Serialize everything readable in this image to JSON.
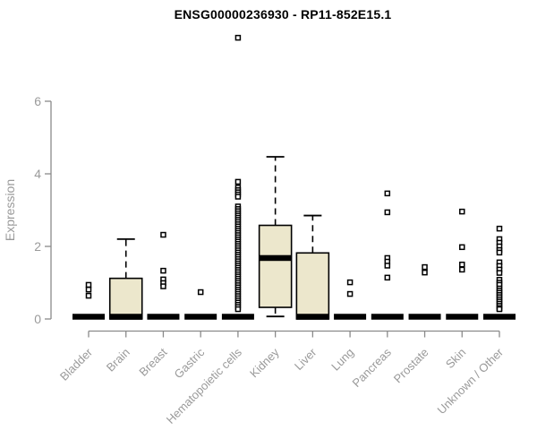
{
  "colors": {
    "box_fill": "#ece7cc",
    "box_stroke": "#000000",
    "median": "#000000",
    "axis_line": "#8a8a8a",
    "tick_label": "#9a9a9a",
    "title": "#000000",
    "outlier_fill": "#ffffff",
    "outlier_stroke": "#000000"
  },
  "chart_data": {
    "type": "boxplot",
    "title": "ENSG00000236930 - RP11-852E15.1",
    "ylabel": "Expression",
    "xlabel": "",
    "ylim": [
      0,
      6
    ],
    "yticks": [
      0,
      2,
      4,
      6
    ],
    "grid": false,
    "legend": false,
    "categories": [
      "Bladder",
      "Brain",
      "Breast",
      "Gastric",
      "Hematopoietic cells",
      "Kidney",
      "Liver",
      "Lung",
      "Pancreas",
      "Prostate",
      "Skin",
      "Unknown / Other"
    ],
    "boxes": [
      {
        "category": "Bladder",
        "q1": 0,
        "median": 0,
        "q3": 0,
        "whisker_low": 0,
        "whisker_high": 0,
        "outliers": [
          0.94,
          0.81,
          0.64
        ]
      },
      {
        "category": "Brain",
        "q1": 0,
        "median": 0,
        "q3": 1.12,
        "whisker_low": 0,
        "whisker_high": 2.2,
        "outliers": []
      },
      {
        "category": "Breast",
        "q1": 0,
        "median": 0,
        "q3": 0,
        "whisker_low": 0,
        "whisker_high": 0,
        "outliers": [
          2.32,
          1.33,
          1.09,
          0.99,
          0.9
        ]
      },
      {
        "category": "Gastric",
        "q1": 0,
        "median": 0,
        "q3": 0,
        "whisker_low": 0,
        "whisker_high": 0,
        "outliers": [
          0.74
        ]
      },
      {
        "category": "Hematopoietic cells",
        "q1": 0,
        "median": 0,
        "q3": 0,
        "whisker_low": 0,
        "whisker_high": 0,
        "outliers": [
          7.75,
          3.78,
          3.62,
          3.55,
          3.49,
          3.43,
          3.37,
          3.1,
          3.03,
          2.97,
          2.91,
          2.85,
          2.79,
          2.73,
          2.67,
          2.61,
          2.55,
          2.49,
          2.43,
          2.37,
          2.31,
          2.25,
          2.19,
          2.13,
          2.07,
          2.01,
          1.95,
          1.89,
          1.83,
          1.77,
          1.71,
          1.65,
          1.59,
          1.53,
          1.47,
          1.41,
          1.35,
          1.29,
          1.23,
          1.17,
          1.11,
          1.05,
          0.99,
          0.93,
          0.87,
          0.81,
          0.75,
          0.69,
          0.63,
          0.57,
          0.51,
          0.45,
          0.39,
          0.33,
          0.27
        ]
      },
      {
        "category": "Kidney",
        "q1": 0.32,
        "median": 1.68,
        "q3": 2.58,
        "whisker_low": 0.07,
        "whisker_high": 4.47,
        "outliers": []
      },
      {
        "category": "Liver",
        "q1": 0,
        "median": 0,
        "q3": 1.82,
        "whisker_low": 0,
        "whisker_high": 2.85,
        "outliers": []
      },
      {
        "category": "Lung",
        "q1": 0,
        "median": 0,
        "q3": 0,
        "whisker_low": 0,
        "whisker_high": 0,
        "outliers": [
          1.01,
          0.69
        ]
      },
      {
        "category": "Pancreas",
        "q1": 0,
        "median": 0,
        "q3": 0,
        "whisker_low": 0,
        "whisker_high": 0,
        "outliers": [
          3.46,
          2.94,
          1.68,
          1.58,
          1.47,
          1.14
        ]
      },
      {
        "category": "Prostate",
        "q1": 0,
        "median": 0,
        "q3": 0,
        "whisker_low": 0,
        "whisker_high": 0,
        "outliers": [
          1.43,
          1.28
        ]
      },
      {
        "category": "Skin",
        "q1": 0,
        "median": 0,
        "q3": 0,
        "whisker_low": 0,
        "whisker_high": 0,
        "outliers": [
          2.96,
          1.98,
          1.5,
          1.36
        ]
      },
      {
        "category": "Unknown / Other",
        "q1": 0,
        "median": 0,
        "q3": 0,
        "whisker_low": 0,
        "whisker_high": 0,
        "outliers": [
          2.49,
          2.2,
          2.1,
          2.0,
          1.9,
          1.83,
          1.56,
          1.46,
          1.36,
          1.27,
          1.08,
          1.0,
          0.94,
          0.84,
          0.78,
          0.72,
          0.66,
          0.6,
          0.54,
          0.48,
          0.42,
          0.36,
          0.3,
          0.27
        ]
      }
    ]
  }
}
